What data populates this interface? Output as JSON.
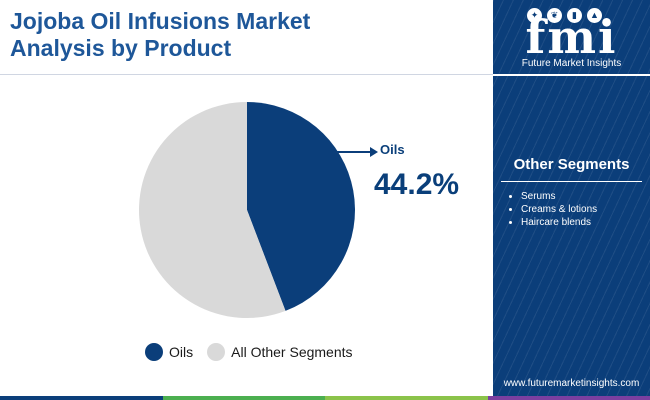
{
  "header": {
    "title_line1": "Jojoba Oil Infusions Market",
    "title_line2": "Analysis by Product"
  },
  "chart_data": {
    "type": "pie",
    "categories": [
      "Oils",
      "All Other Segments"
    ],
    "values": [
      44.2,
      55.8
    ],
    "colors": [
      "#0b3e7a",
      "#d9d9d9"
    ],
    "start": "12 o'clock, clockwise",
    "callout": {
      "label": "Oils",
      "value": "44.2%"
    },
    "legend": [
      "Oils",
      "All Other Segments"
    ],
    "legend_position": "bottom"
  },
  "sidebar": {
    "logo_word": "fmi",
    "logo_caption": "Future Market Insights",
    "logo_icons": [
      "sparkle-icon",
      "leaf-icon",
      "bottle-icon",
      "flask-icon"
    ],
    "segments_title": "Other Segments",
    "segments": [
      "Serums",
      "Creams & lotions",
      "Haircare blends"
    ],
    "website": "www.futuremarketinsights.com"
  },
  "bottom_bar_colors": [
    "#0b3e7a",
    "#4caf50",
    "#8bc34a",
    "#7b3fa0"
  ]
}
